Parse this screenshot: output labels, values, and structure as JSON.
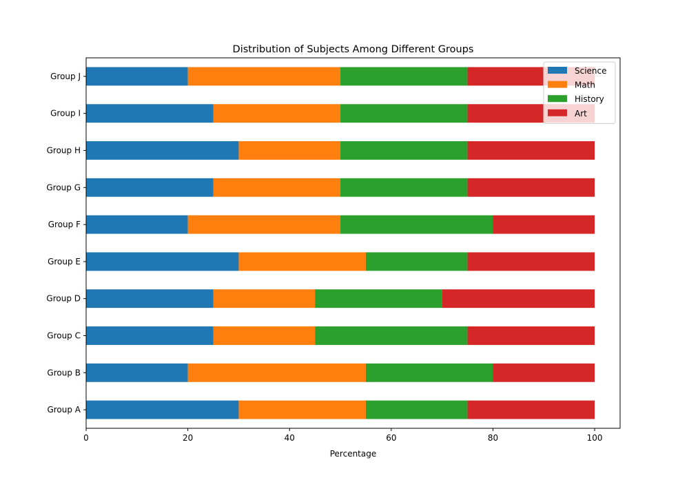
{
  "chart_data": {
    "type": "bar",
    "orientation": "horizontal",
    "stacked": true,
    "title": "Distribution of Subjects Among Different Groups",
    "xlabel": "Percentage",
    "ylabel": "",
    "xlim": [
      0,
      105
    ],
    "xticks": [
      0,
      20,
      40,
      60,
      80,
      100
    ],
    "grid": false,
    "legend_position": "top-right",
    "categories": [
      "Group A",
      "Group B",
      "Group C",
      "Group D",
      "Group E",
      "Group F",
      "Group G",
      "Group H",
      "Group I",
      "Group J"
    ],
    "series": [
      {
        "name": "Science",
        "color": "#1f77b4",
        "values": [
          30,
          20,
          25,
          25,
          30,
          20,
          25,
          30,
          25,
          20
        ]
      },
      {
        "name": "Math",
        "color": "#ff7f0e",
        "values": [
          25,
          35,
          20,
          20,
          25,
          30,
          25,
          20,
          25,
          30
        ]
      },
      {
        "name": "History",
        "color": "#2ca02c",
        "values": [
          20,
          25,
          30,
          25,
          20,
          30,
          25,
          25,
          25,
          25
        ]
      },
      {
        "name": "Art",
        "color": "#d62728",
        "values": [
          25,
          20,
          25,
          30,
          25,
          20,
          25,
          25,
          25,
          25
        ]
      }
    ]
  }
}
